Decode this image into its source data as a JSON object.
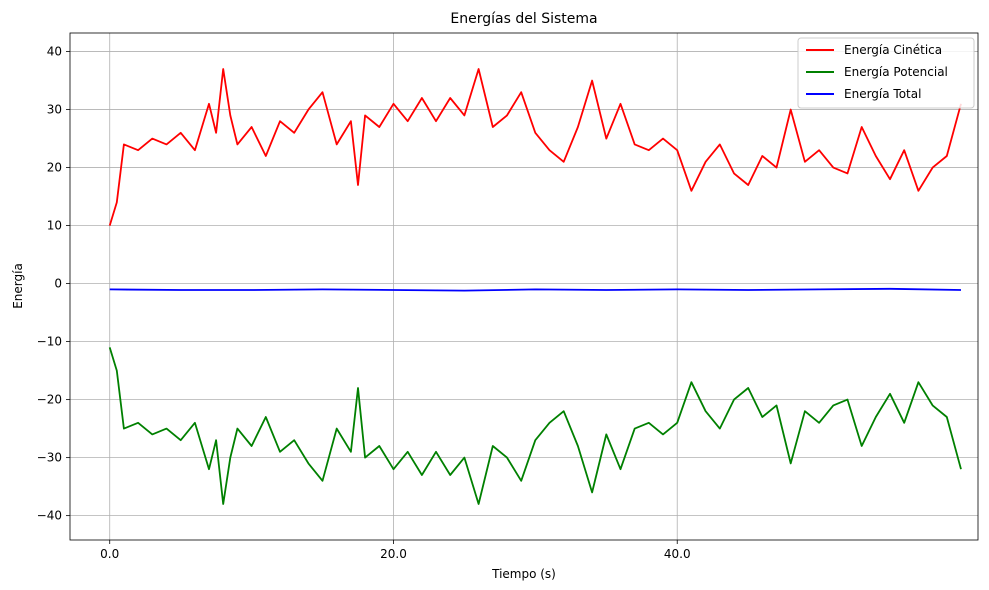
{
  "chart_data": {
    "type": "line",
    "title": "Energías del Sistema",
    "xlabel": "Tiempo (s)",
    "ylabel": "Energía",
    "xlim": [
      -2.8,
      61.2
    ],
    "ylim": [
      -44.2,
      43.2
    ],
    "xticks": [
      0,
      20,
      40
    ],
    "xtick_labels": [
      "0.0",
      "20.0",
      "40.0"
    ],
    "yticks": [
      40,
      30,
      20,
      10,
      0,
      -10,
      -20,
      -30,
      -40
    ],
    "ytick_labels": [
      "40",
      "30",
      "20",
      "10",
      "0",
      "−10",
      "−20",
      "−30",
      "−40"
    ],
    "grid": true,
    "legend_position": "top-right",
    "series": [
      {
        "name": "Energía Cinética",
        "color": "#ff0000",
        "x": [
          0,
          0.5,
          1,
          2,
          3,
          4,
          5,
          6,
          7,
          7.5,
          8,
          8.5,
          9,
          10,
          11,
          12,
          13,
          14,
          15,
          16,
          17,
          17.5,
          18,
          19,
          20,
          21,
          22,
          23,
          24,
          25,
          26,
          27,
          28,
          29,
          30,
          31,
          32,
          33,
          34,
          35,
          36,
          37,
          38,
          39,
          40,
          41,
          42,
          43,
          44,
          45,
          46,
          47,
          48,
          49,
          50,
          51,
          52,
          53,
          54,
          55,
          56,
          57,
          58,
          59,
          60
        ],
        "y": [
          10,
          14,
          24,
          23,
          25,
          24,
          26,
          23,
          31,
          26,
          37,
          29,
          24,
          27,
          22,
          28,
          26,
          30,
          33,
          24,
          28,
          17,
          29,
          27,
          31,
          28,
          32,
          28,
          32,
          29,
          37,
          27,
          29,
          33,
          26,
          23,
          21,
          27,
          35,
          25,
          31,
          24,
          23,
          25,
          23,
          16,
          21,
          24,
          19,
          17,
          22,
          20,
          30,
          21,
          23,
          20,
          19,
          27,
          22,
          18,
          23,
          16,
          20,
          22,
          31
        ]
      },
      {
        "name": "Energía Potencial",
        "color": "#008000",
        "x": [
          0,
          0.5,
          1,
          2,
          3,
          4,
          5,
          6,
          7,
          7.5,
          8,
          8.5,
          9,
          10,
          11,
          12,
          13,
          14,
          15,
          16,
          17,
          17.5,
          18,
          19,
          20,
          21,
          22,
          23,
          24,
          25,
          26,
          27,
          28,
          29,
          30,
          31,
          32,
          33,
          34,
          35,
          36,
          37,
          38,
          39,
          40,
          41,
          42,
          43,
          44,
          45,
          46,
          47,
          48,
          49,
          50,
          51,
          52,
          53,
          54,
          55,
          56,
          57,
          58,
          59,
          60
        ],
        "y": [
          -11,
          -15,
          -25,
          -24,
          -26,
          -25,
          -27,
          -24,
          -32,
          -27,
          -38,
          -30,
          -25,
          -28,
          -23,
          -29,
          -27,
          -31,
          -34,
          -25,
          -29,
          -18,
          -30,
          -28,
          -32,
          -29,
          -33,
          -29,
          -33,
          -30,
          -38,
          -28,
          -30,
          -34,
          -27,
          -24,
          -22,
          -28,
          -36,
          -26,
          -32,
          -25,
          -24,
          -26,
          -24,
          -17,
          -22,
          -25,
          -20,
          -18,
          -23,
          -21,
          -31,
          -22,
          -24,
          -21,
          -20,
          -28,
          -23,
          -19,
          -24,
          -17,
          -21,
          -23,
          -32
        ]
      },
      {
        "name": "Energía Total",
        "color": "#0000ff",
        "x": [
          0,
          5,
          10,
          15,
          20,
          25,
          30,
          35,
          40,
          45,
          50,
          55,
          60
        ],
        "y": [
          -1.0,
          -1.1,
          -1.1,
          -1.0,
          -1.1,
          -1.2,
          -1.0,
          -1.1,
          -1.0,
          -1.1,
          -1.0,
          -0.9,
          -1.1
        ]
      }
    ]
  }
}
